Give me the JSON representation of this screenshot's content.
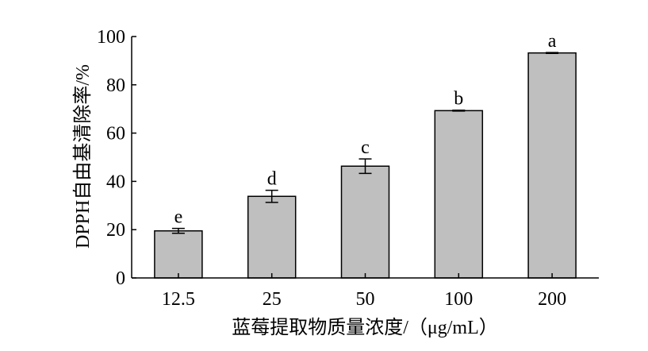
{
  "chart_data": {
    "type": "bar",
    "categories": [
      "12.5",
      "25",
      "50",
      "100",
      "200"
    ],
    "values": [
      19.5,
      33.8,
      46.3,
      69.3,
      93.2
    ],
    "errors": [
      1.0,
      2.5,
      3.0,
      0.2,
      0.2
    ],
    "significance": [
      "e",
      "d",
      "c",
      "b",
      "a"
    ],
    "xlabel": "蓝莓提取物质量浓度/（μg/mL）",
    "ylabel": "DPPH自由基清除率/%",
    "ylim": [
      0,
      100
    ],
    "yticks": [
      0,
      20,
      40,
      60,
      80,
      100
    ],
    "grid": false,
    "bar_color": "#bfbfbf",
    "edge_color": "#000000"
  }
}
